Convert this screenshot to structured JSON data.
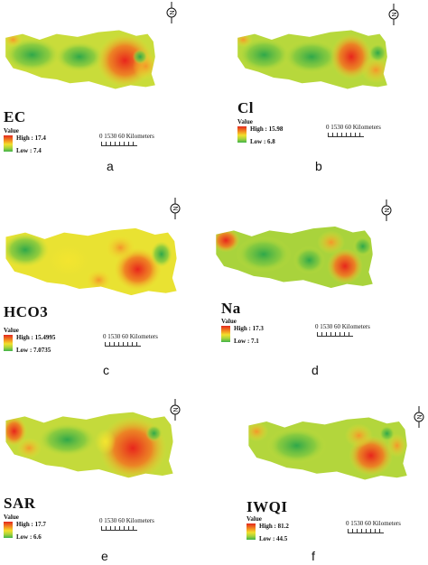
{
  "panels": [
    {
      "title": "EC",
      "letter": "a",
      "value_label": "Value",
      "high": "High : 17.4",
      "low": "Low : 7.4",
      "scale_text": "0 1530    60 Kilometers",
      "north": "N"
    },
    {
      "title": "Cl",
      "letter": "b",
      "value_label": "Value",
      "high": "High : 15.98",
      "low": "Low : 6.8",
      "scale_text": "0 1530    60 Kilometers",
      "north": "N"
    },
    {
      "title": "HCO3",
      "letter": "c",
      "value_label": "Value",
      "high": "High : 15.4995",
      "low": "Low : 7.0735",
      "scale_text": "0 1530    60 Kilometers",
      "north": "N"
    },
    {
      "title": "Na",
      "letter": "d",
      "value_label": "Value",
      "high": "High : 17.3",
      "low": "Low : 7.1",
      "scale_text": "0 1530    60 Kilometers",
      "north": "N"
    },
    {
      "title": "SAR",
      "letter": "e",
      "value_label": "Value",
      "high": "High : 17.7",
      "low": "Low : 6.6",
      "scale_text": "0 1530    60 Kilometers",
      "north": "N"
    },
    {
      "title": "IWQI",
      "letter": "f",
      "value_label": "Value",
      "high": "High : 81.2",
      "low": "Low : 44.5",
      "scale_text": "0 1530    60 Kilometers",
      "north": "N"
    }
  ],
  "colors": {
    "high": "#e3271c",
    "mid": "#f2e02d",
    "low": "#3fb34a"
  }
}
